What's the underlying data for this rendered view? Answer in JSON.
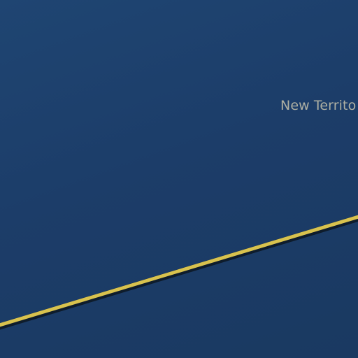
{
  "map": {
    "background_color": "#1c3d69",
    "road": {
      "name": "",
      "color": "#d8c24e",
      "casing_color": "#0e1c2c"
    },
    "labels": {
      "area": "New Territo"
    },
    "label_color": "#aeb0a3"
  }
}
